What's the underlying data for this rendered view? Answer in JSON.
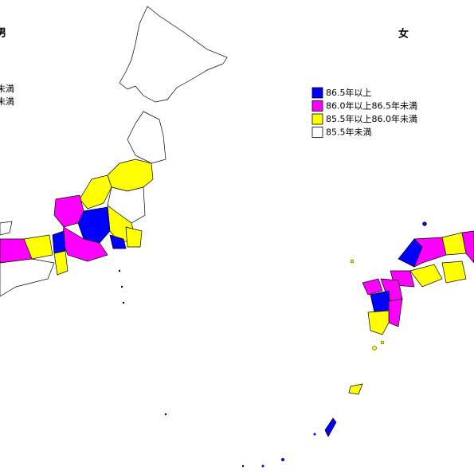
{
  "maps": [
    {
      "title": "男",
      "legend": [
        "未満",
        "未満"
      ]
    },
    {
      "title": "女",
      "legend": [
        {
          "label": "86.5年以上",
          "color": "#0000ff"
        },
        {
          "label": "86.0年以上86.5年未満",
          "color": "#ff00ff"
        },
        {
          "label": "85.5年以上86.0年未満",
          "color": "#ffff00"
        },
        {
          "label": "85.5年未満",
          "color": "#ffffff"
        }
      ]
    }
  ]
}
